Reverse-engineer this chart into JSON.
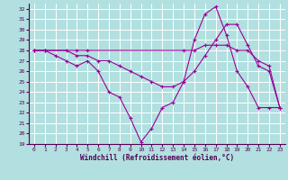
{
  "xlabel": "Windchill (Refroidissement éolien,°C)",
  "background_color": "#b2e0e0",
  "grid_color": "#ffffff",
  "line_color": "#990099",
  "xlim": [
    -0.5,
    23.5
  ],
  "ylim": [
    19,
    32.5
  ],
  "xticks": [
    0,
    1,
    2,
    3,
    4,
    5,
    6,
    7,
    8,
    9,
    10,
    11,
    12,
    13,
    14,
    15,
    16,
    17,
    18,
    19,
    20,
    21,
    22,
    23
  ],
  "yticks": [
    19,
    20,
    21,
    22,
    23,
    24,
    25,
    26,
    27,
    28,
    29,
    30,
    31,
    32
  ],
  "series1_x": [
    0,
    1,
    2,
    3,
    4,
    5,
    6,
    7,
    8,
    9,
    10,
    11,
    12,
    13,
    14,
    15,
    16,
    17,
    18,
    19,
    20,
    21,
    22,
    23
  ],
  "series1_y": [
    28.0,
    28.0,
    27.5,
    27.0,
    26.5,
    27.0,
    26.0,
    24.0,
    23.5,
    21.5,
    19.2,
    20.5,
    22.5,
    23.0,
    25.0,
    29.0,
    31.5,
    32.2,
    29.5,
    26.0,
    24.5,
    22.5,
    22.5,
    22.5
  ],
  "series2_x": [
    0,
    1,
    3,
    4,
    5,
    6,
    7,
    8,
    9,
    10,
    11,
    12,
    13,
    14,
    15,
    16,
    17,
    18,
    19,
    20,
    21,
    22,
    23
  ],
  "series2_y": [
    28.0,
    28.0,
    28.0,
    27.5,
    27.5,
    27.0,
    27.0,
    26.5,
    26.0,
    25.5,
    25.0,
    24.5,
    24.5,
    25.0,
    26.0,
    27.5,
    29.0,
    30.5,
    30.5,
    28.5,
    26.5,
    26.0,
    22.5
  ],
  "series3_x": [
    0,
    1,
    4,
    5,
    14,
    15,
    16,
    17,
    18,
    19,
    20,
    21,
    22,
    23
  ],
  "series3_y": [
    28.0,
    28.0,
    28.0,
    28.0,
    28.0,
    28.0,
    28.5,
    28.5,
    28.5,
    28.0,
    28.0,
    27.0,
    26.5,
    22.5
  ]
}
